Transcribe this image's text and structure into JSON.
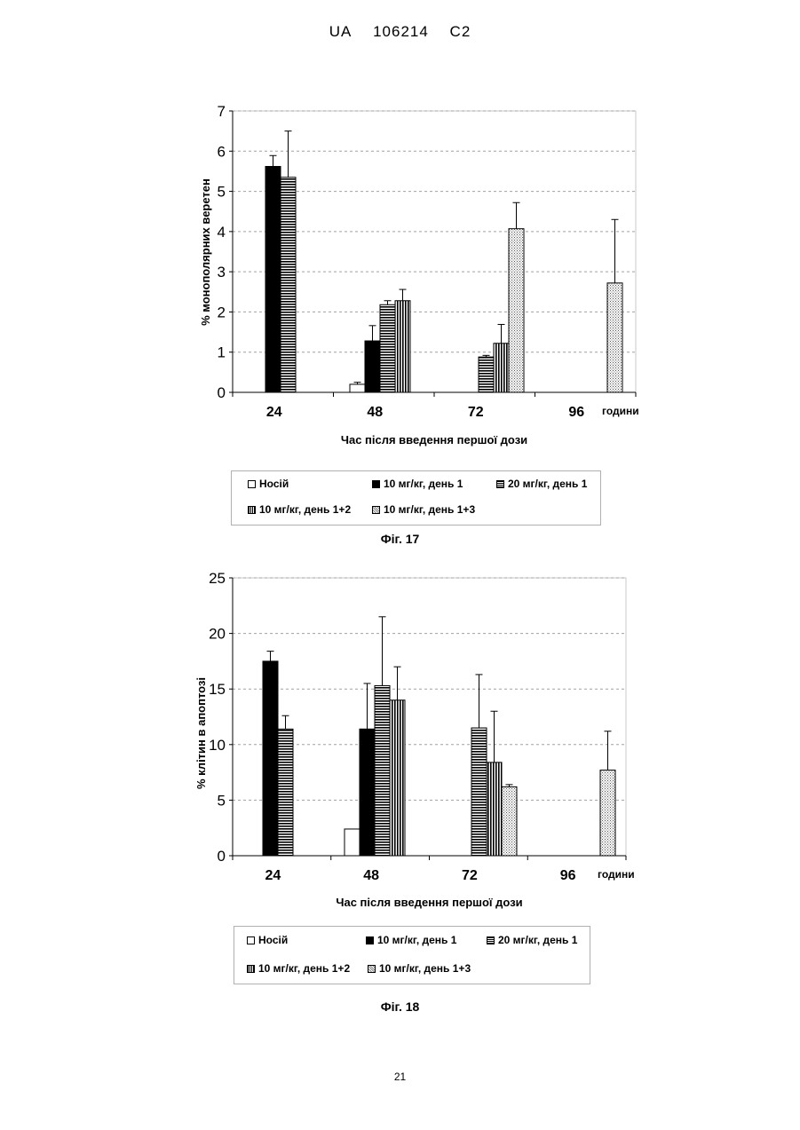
{
  "header": {
    "country": "UA",
    "number": "106214",
    "kind": "C2"
  },
  "chart_data": [
    {
      "type": "bar",
      "ylabel": "% монополярних веретен",
      "xlabel": "Час після введення першої дози",
      "x_unit": "години",
      "categories": [
        "24",
        "48",
        "72",
        "96"
      ],
      "ylim": [
        0,
        7
      ],
      "yticks": [
        0,
        1,
        2,
        3,
        4,
        5,
        6,
        7
      ],
      "grid": true,
      "series": [
        {
          "name": "Носій",
          "values": [
            null,
            0.2,
            null,
            null
          ],
          "errors": [
            null,
            0.05,
            null,
            null
          ]
        },
        {
          "name": "10 мг/кг, день 1",
          "values": [
            5.62,
            1.28,
            null,
            null
          ],
          "errors": [
            0.27,
            0.38,
            null,
            null
          ]
        },
        {
          "name": "20 мг/кг, день 1",
          "values": [
            5.35,
            2.18,
            0.88,
            null
          ],
          "errors": [
            1.15,
            0.1,
            0.04,
            null
          ]
        },
        {
          "name": "10 мг/кг, день 1+2",
          "values": [
            null,
            2.28,
            1.22,
            null
          ],
          "errors": [
            null,
            0.28,
            0.47,
            null
          ]
        },
        {
          "name": "10 мг/кг, день 1+3",
          "values": [
            null,
            null,
            4.07,
            2.72
          ],
          "errors": [
            null,
            null,
            0.65,
            1.58
          ]
        }
      ],
      "caption": "Фіг. 17"
    },
    {
      "type": "bar",
      "ylabel": "% клітин в апоптозі",
      "xlabel": "Час після введення першої дози",
      "x_unit": "години",
      "categories": [
        "24",
        "48",
        "72",
        "96"
      ],
      "ylim": [
        0,
        25
      ],
      "yticks": [
        0,
        5,
        10,
        15,
        20,
        25
      ],
      "grid": true,
      "series": [
        {
          "name": "Носій",
          "values": [
            null,
            2.4,
            null,
            null
          ],
          "errors": [
            null,
            null,
            null,
            null
          ]
        },
        {
          "name": "10 мг/кг, день 1",
          "values": [
            17.5,
            11.4,
            null,
            null
          ],
          "errors": [
            0.9,
            4.1,
            null,
            null
          ]
        },
        {
          "name": "20 мг/кг, день 1",
          "values": [
            11.4,
            15.3,
            11.5,
            null
          ],
          "errors": [
            1.2,
            6.2,
            4.8,
            null
          ]
        },
        {
          "name": "10 мг/кг, день 1+2",
          "values": [
            null,
            14.0,
            8.4,
            null
          ],
          "errors": [
            null,
            3.0,
            4.6,
            null
          ]
        },
        {
          "name": "10 мг/кг, день 1+3",
          "values": [
            null,
            null,
            6.2,
            7.7
          ],
          "errors": [
            null,
            null,
            0.2,
            3.5
          ]
        }
      ],
      "caption": "Фіг. 18"
    }
  ],
  "page_number": "21"
}
